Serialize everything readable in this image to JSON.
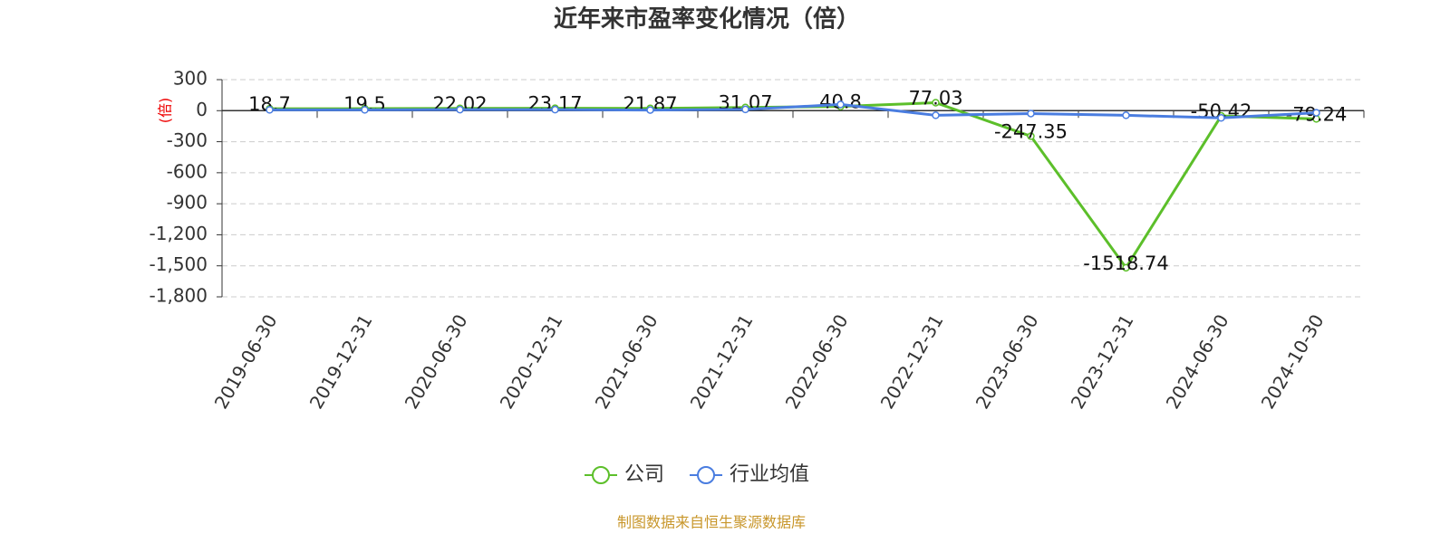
{
  "chart_data": {
    "type": "line",
    "title": "近年来市盈率变化情况（倍）",
    "y_label": "(倍)",
    "categories": [
      "2019-06-30",
      "2019-12-31",
      "2020-06-30",
      "2020-12-31",
      "2021-06-30",
      "2021-12-31",
      "2022-06-30",
      "2022-12-31",
      "2023-06-30",
      "2023-12-31",
      "2024-06-30",
      "2024-10-30"
    ],
    "series": [
      {
        "name": "公司",
        "color": "#5cbf2a",
        "values": [
          18.7,
          19.5,
          22.02,
          23.17,
          21.87,
          31.07,
          40.8,
          77.03,
          -247.35,
          -1518.74,
          -50.42,
          -79.24
        ],
        "show_labels": true
      },
      {
        "name": "行业均值",
        "color": "#4a7de0",
        "values": [
          8,
          8,
          10,
          10,
          6,
          12,
          60,
          -45,
          -28,
          -45,
          -70,
          -20
        ],
        "show_labels": false
      }
    ],
    "ylim": [
      -1800,
      300
    ],
    "yticks": [
      300,
      0,
      -300,
      -600,
      -900,
      {
        "value": -1200,
        "label": "-1,200"
      },
      {
        "value": -1500,
        "label": "-1,500"
      },
      {
        "value": -1800,
        "label": "-1,800"
      }
    ],
    "grid": true,
    "legend": "bottom",
    "source": "制图数据来自恒生聚源数据库"
  }
}
